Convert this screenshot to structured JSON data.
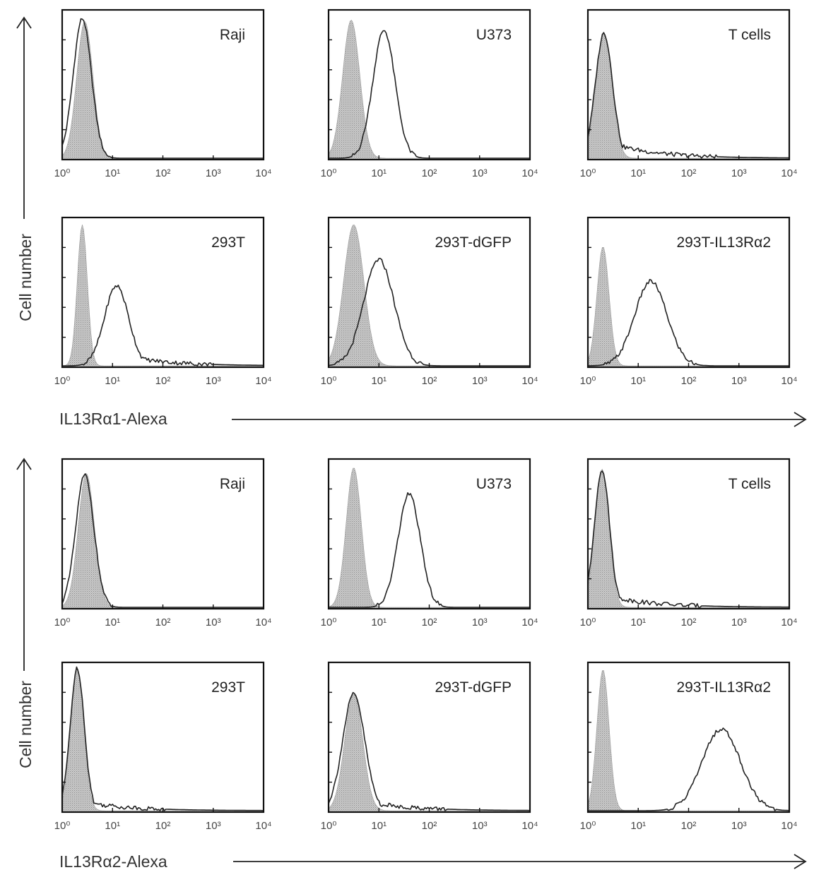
{
  "chart_data": [
    {
      "type": "area",
      "name": "IL13Rα1 staining",
      "xlabel": "IL13Rα1-Alexa",
      "ylabel": "Cell number",
      "x_scale": "log",
      "xlim": [
        1,
        10000
      ],
      "x_ticks": [
        "10⁰",
        "10¹",
        "10²",
        "10³",
        "10⁴"
      ],
      "panels": [
        {
          "label": "Raji",
          "row": 0,
          "col": 0,
          "isotype": {
            "peak": 0.45,
            "width": 0.16,
            "height": 0.94
          },
          "stained": {
            "peak": 0.4,
            "width": 0.18,
            "height": 0.96
          }
        },
        {
          "label": "U373",
          "row": 0,
          "col": 1,
          "isotype": {
            "peak": 0.45,
            "width": 0.17,
            "height": 0.95
          },
          "stained": {
            "peak": 1.1,
            "width": 0.22,
            "height": 0.88
          }
        },
        {
          "label": "T cells",
          "row": 0,
          "col": 2,
          "isotype": {
            "peak": 0.32,
            "width": 0.16,
            "height": 0.86
          },
          "stained": {
            "peak": 0.32,
            "width": 0.17,
            "height": 0.86,
            "tail": 0.12
          }
        },
        {
          "label": "293T",
          "row": 1,
          "col": 0,
          "isotype": {
            "peak": 0.4,
            "width": 0.1,
            "height": 0.97
          },
          "stained": {
            "peak": 1.08,
            "width": 0.24,
            "height": 0.55,
            "tail": 0.08
          }
        },
        {
          "label": "293T-dGFP",
          "row": 1,
          "col": 1,
          "isotype": {
            "peak": 0.5,
            "width": 0.2,
            "height": 0.97
          },
          "stained": {
            "peak": 1.0,
            "width": 0.3,
            "height": 0.73
          }
        },
        {
          "label": "293T-IL13Rα2",
          "row": 1,
          "col": 2,
          "isotype": {
            "peak": 0.3,
            "width": 0.12,
            "height": 0.82
          },
          "stained": {
            "peak": 1.25,
            "width": 0.32,
            "height": 0.58
          }
        }
      ]
    },
    {
      "type": "area",
      "name": "IL13Rα2 staining",
      "xlabel": "IL13Rα2-Alexa",
      "ylabel": "Cell number",
      "x_scale": "log",
      "xlim": [
        1,
        10000
      ],
      "x_ticks": [
        "10⁰",
        "10¹",
        "10²",
        "10³",
        "10⁴"
      ],
      "panels": [
        {
          "label": "Raji",
          "row": 2,
          "col": 0,
          "isotype": {
            "peak": 0.48,
            "width": 0.16,
            "height": 0.92
          },
          "stained": {
            "peak": 0.45,
            "width": 0.18,
            "height": 0.91
          }
        },
        {
          "label": "U373",
          "row": 2,
          "col": 1,
          "isotype": {
            "peak": 0.5,
            "width": 0.15,
            "height": 0.96
          },
          "stained": {
            "peak": 1.6,
            "width": 0.22,
            "height": 0.78
          }
        },
        {
          "label": "T cells",
          "row": 2,
          "col": 2,
          "isotype": {
            "peak": 0.28,
            "width": 0.14,
            "height": 0.95
          },
          "stained": {
            "peak": 0.28,
            "width": 0.15,
            "height": 0.95,
            "tail": 0.09
          }
        },
        {
          "label": "293T",
          "row": 3,
          "col": 0,
          "isotype": {
            "peak": 0.3,
            "width": 0.13,
            "height": 0.98
          },
          "stained": {
            "peak": 0.3,
            "width": 0.14,
            "height": 0.98,
            "tail": 0.07
          }
        },
        {
          "label": "293T-dGFP",
          "row": 3,
          "col": 1,
          "isotype": {
            "peak": 0.5,
            "width": 0.18,
            "height": 0.8
          },
          "stained": {
            "peak": 0.5,
            "width": 0.22,
            "height": 0.8,
            "tail": 0.08
          }
        },
        {
          "label": "293T-IL13Rα2",
          "row": 3,
          "col": 2,
          "isotype": {
            "peak": 0.3,
            "width": 0.12,
            "height": 0.97
          },
          "stained": {
            "peak": 2.65,
            "width": 0.38,
            "height": 0.56
          }
        }
      ]
    }
  ]
}
